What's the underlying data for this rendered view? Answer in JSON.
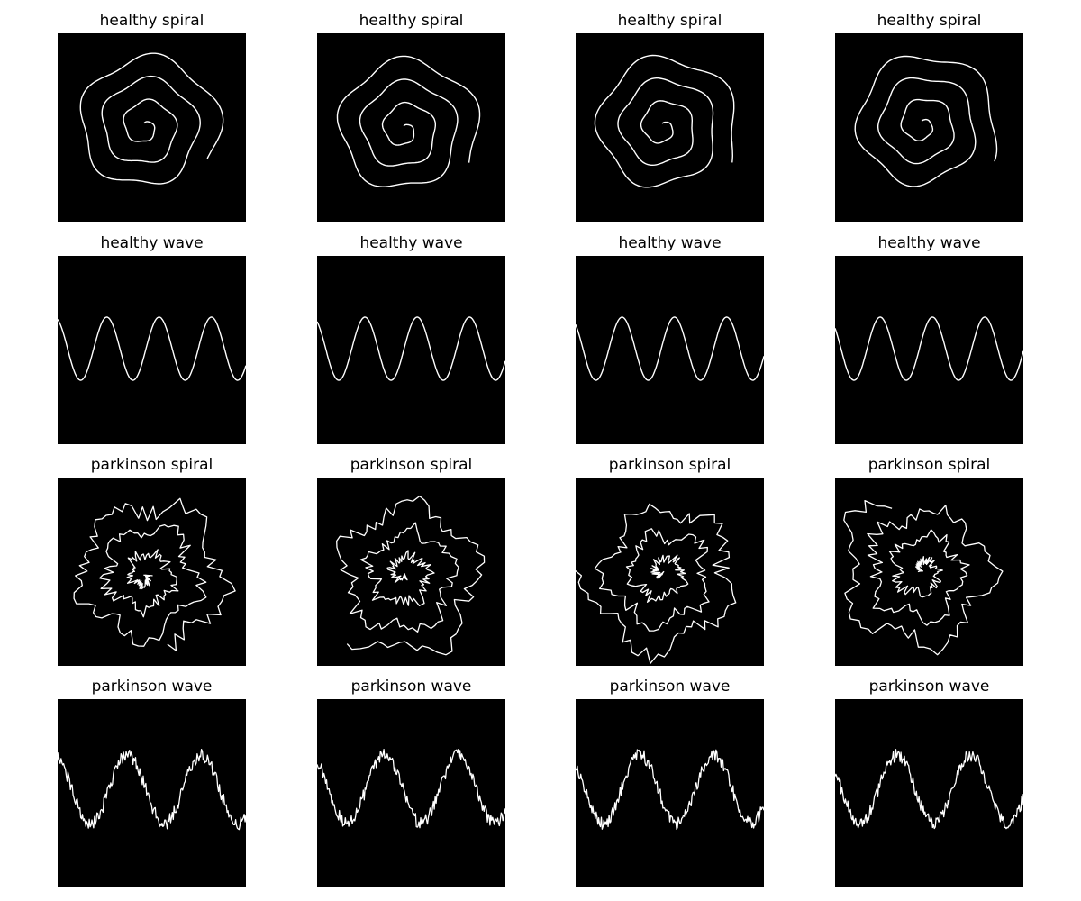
{
  "figure": {
    "background_color": "#ffffff",
    "image_background_color": "#000000",
    "stroke_color": "#ffffff",
    "rows": [
      {
        "row_name": "healthy-spiral",
        "kind": "spiral",
        "condition": "healthy",
        "panels": [
          {
            "title": "healthy spiral"
          },
          {
            "title": "healthy spiral"
          },
          {
            "title": "healthy spiral"
          },
          {
            "title": "healthy spiral"
          }
        ]
      },
      {
        "row_name": "healthy-wave",
        "kind": "wave",
        "condition": "healthy",
        "panels": [
          {
            "title": "healthy wave"
          },
          {
            "title": "healthy wave"
          },
          {
            "title": "healthy wave"
          },
          {
            "title": "healthy wave"
          }
        ]
      },
      {
        "row_name": "parkinson-spiral",
        "kind": "spiral",
        "condition": "parkinson",
        "panels": [
          {
            "title": "parkinson spiral"
          },
          {
            "title": "parkinson spiral"
          },
          {
            "title": "parkinson spiral"
          },
          {
            "title": "parkinson spiral"
          }
        ]
      },
      {
        "row_name": "parkinson-wave",
        "kind": "wave",
        "condition": "parkinson",
        "panels": [
          {
            "title": "parkinson wave"
          },
          {
            "title": "parkinson wave"
          },
          {
            "title": "parkinson wave"
          },
          {
            "title": "parkinson wave"
          }
        ]
      }
    ]
  }
}
